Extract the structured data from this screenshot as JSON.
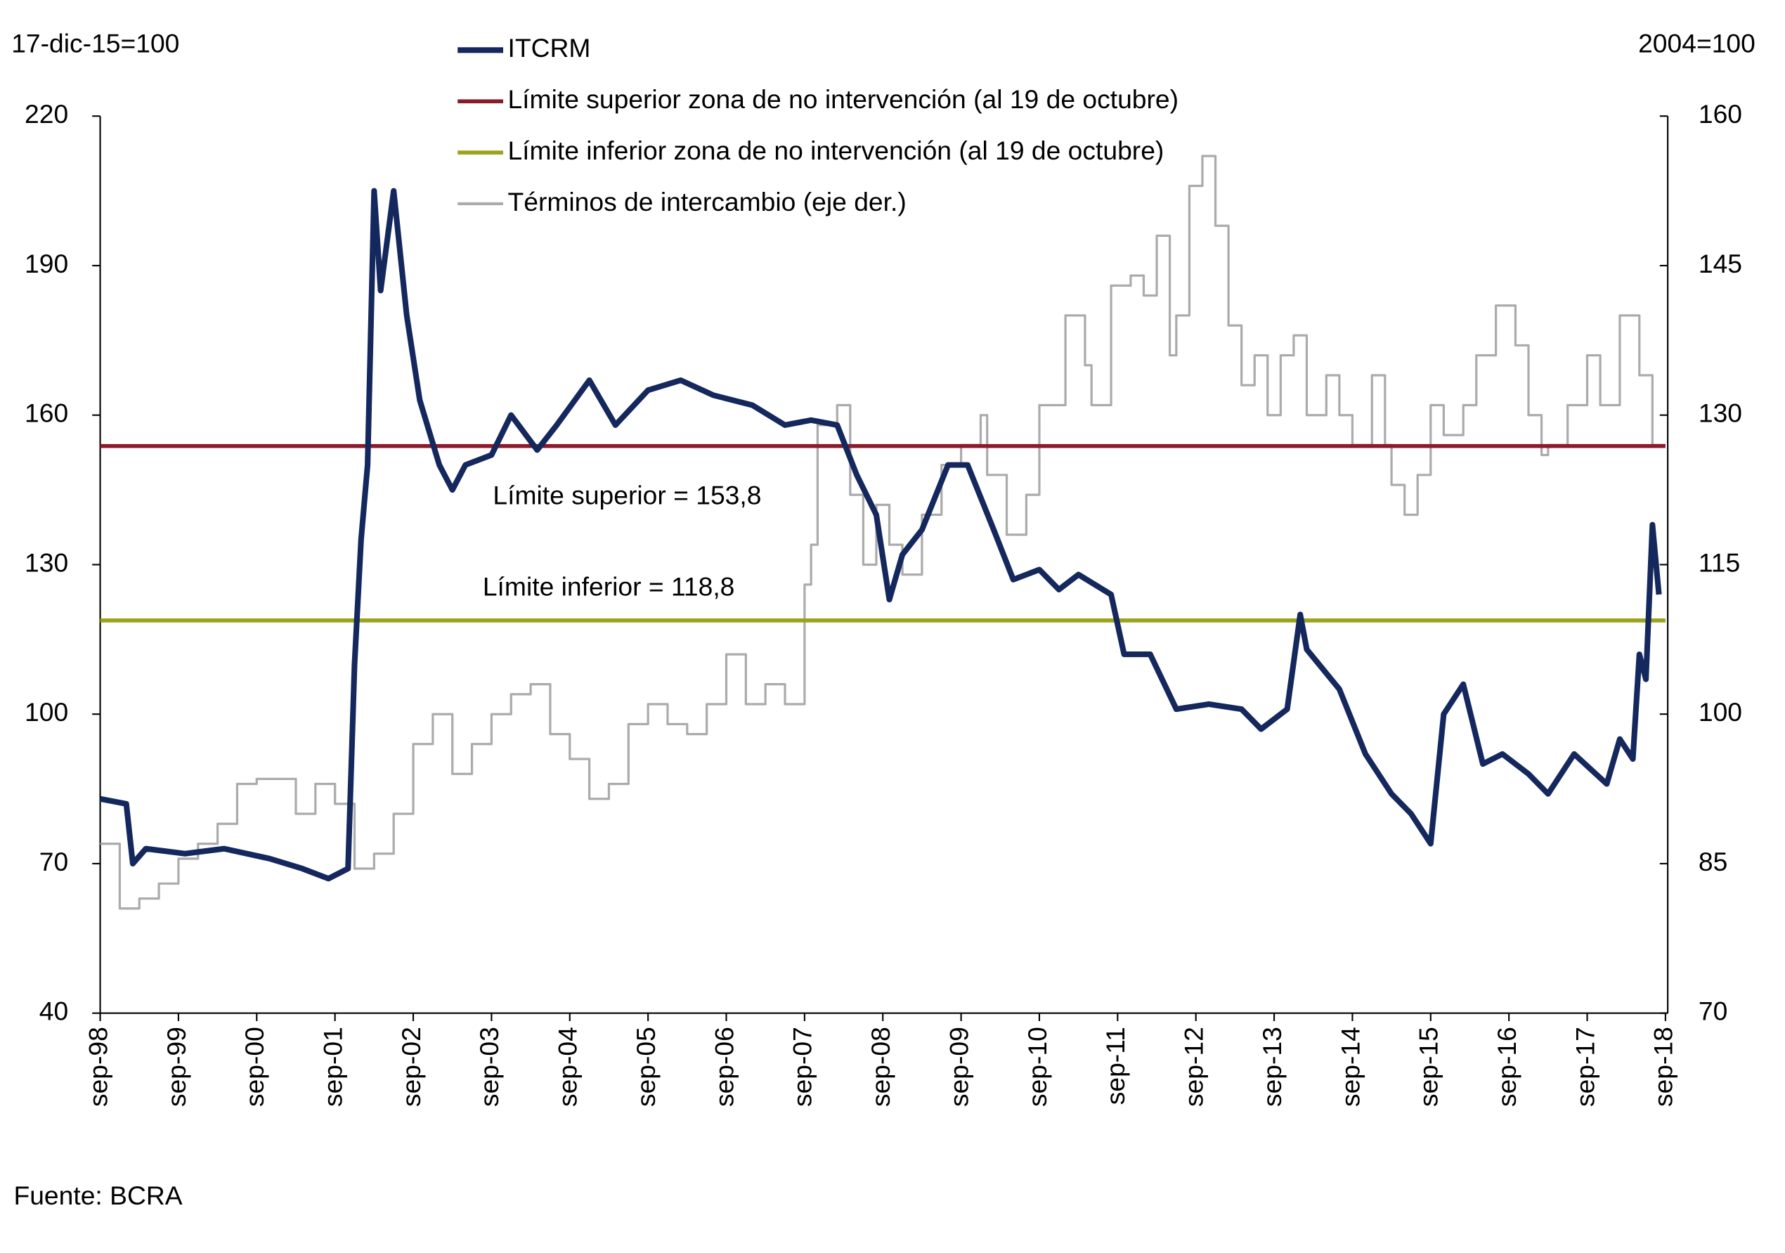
{
  "chart_data": {
    "type": "line",
    "y_label": "17-dic-15=100",
    "y2_label": "2004=100",
    "source": "Fuente: BCRA",
    "legend": "top",
    "xlim": [
      "1998-09",
      "2018-09"
    ],
    "xticks": [
      {
        "value": "1998-09",
        "label": "sep-98"
      },
      {
        "value": "1999-09",
        "label": "sep-99"
      },
      {
        "value": "2000-09",
        "label": "sep-00"
      },
      {
        "value": "2001-09",
        "label": "sep-01"
      },
      {
        "value": "2002-09",
        "label": "sep-02"
      },
      {
        "value": "2003-09",
        "label": "sep-03"
      },
      {
        "value": "2004-09",
        "label": "sep-04"
      },
      {
        "value": "2005-09",
        "label": "sep-05"
      },
      {
        "value": "2006-09",
        "label": "sep-06"
      },
      {
        "value": "2007-09",
        "label": "sep-07"
      },
      {
        "value": "2008-09",
        "label": "sep-08"
      },
      {
        "value": "2009-09",
        "label": "sep-09"
      },
      {
        "value": "2010-09",
        "label": "sep-10"
      },
      {
        "value": "2011-09",
        "label": "sep-11"
      },
      {
        "value": "2012-09",
        "label": "sep-12"
      },
      {
        "value": "2013-09",
        "label": "sep-13"
      },
      {
        "value": "2014-09",
        "label": "sep-14"
      },
      {
        "value": "2015-09",
        "label": "sep-15"
      },
      {
        "value": "2016-09",
        "label": "sep-16"
      },
      {
        "value": "2017-09",
        "label": "sep-17"
      },
      {
        "value": "2018-09",
        "label": "sep-18"
      }
    ],
    "ylim": [
      40,
      220
    ],
    "yticks": [
      40,
      70,
      100,
      130,
      160,
      190,
      220
    ],
    "y2lim": [
      70,
      160
    ],
    "y2ticks": [
      70,
      85,
      100,
      115,
      130,
      145,
      160
    ],
    "annotations": [
      {
        "text": "Límite superior = 153,8",
        "color": "#8b1a2b"
      },
      {
        "text": "Límite inferior  = 118,8",
        "color": "#8a8c10"
      }
    ],
    "series": [
      {
        "name": "ITCRM",
        "color": "#14285e",
        "width": 5,
        "x": [
          "1998-09",
          "1999-01",
          "1999-02",
          "1999-04",
          "1999-10",
          "2000-04",
          "2000-11",
          "2001-04",
          "2001-08",
          "2001-11",
          "2001-12",
          "2002-01",
          "2002-02",
          "2002-03",
          "2002-04",
          "2002-06",
          "2002-08",
          "2002-10",
          "2003-01",
          "2003-03",
          "2003-05",
          "2003-09",
          "2003-12",
          "2004-04",
          "2004-07",
          "2004-12",
          "2005-04",
          "2005-09",
          "2006-02",
          "2006-07",
          "2007-01",
          "2007-06",
          "2007-10",
          "2008-02",
          "2008-05",
          "2008-08",
          "2008-10",
          "2008-12",
          "2009-03",
          "2009-07",
          "2009-10",
          "2010-02",
          "2010-05",
          "2010-09",
          "2010-12",
          "2011-03",
          "2011-08",
          "2011-10",
          "2012-02",
          "2012-06",
          "2012-11",
          "2013-04",
          "2013-07",
          "2013-11",
          "2014-01",
          "2014-02",
          "2014-07",
          "2014-11",
          "2015-03",
          "2015-06",
          "2015-09",
          "2015-11",
          "2016-02",
          "2016-05",
          "2016-08",
          "2016-12",
          "2017-03",
          "2017-07",
          "2017-12",
          "2018-02",
          "2018-04",
          "2018-05",
          "2018-06",
          "2018-07",
          "2018-08"
        ],
        "values": [
          83,
          82,
          70,
          73,
          72,
          73,
          71,
          69,
          67,
          69,
          110,
          135,
          150,
          205,
          185,
          205,
          180,
          163,
          150,
          145,
          150,
          152,
          160,
          153,
          158,
          167,
          158,
          165,
          167,
          164,
          162,
          158,
          159,
          158,
          148,
          140,
          123,
          132,
          137,
          150,
          150,
          137,
          127,
          129,
          125,
          128,
          124,
          112,
          112,
          101,
          102,
          101,
          97,
          101,
          120,
          113,
          105,
          92,
          84,
          80,
          74,
          100,
          106,
          90,
          92,
          88,
          84,
          92,
          86,
          95,
          91,
          112,
          107,
          138,
          124
        ]
      },
      {
        "name": "Límite superior zona de no intervención (al 19 de octubre)",
        "color": "#8b1a2b",
        "width": 3.5,
        "x": [
          "1998-09",
          "2018-09"
        ],
        "values": [
          153.8,
          153.8
        ]
      },
      {
        "name": "Límite inferior zona de no intervención (al 19 de octubre)",
        "color": "#9aa31a",
        "width": 3.5,
        "x": [
          "1998-09",
          "2018-09"
        ],
        "values": [
          118.8,
          118.8
        ]
      },
      {
        "name": "Términos de intercambio (eje der.)",
        "color": "#ababab",
        "width": 2,
        "axis": "y2",
        "step": true,
        "x": [
          "1998-09",
          "1998-12",
          "1999-03",
          "1999-06",
          "1999-09",
          "1999-12",
          "2000-03",
          "2000-06",
          "2000-09",
          "2001-03",
          "2001-06",
          "2001-09",
          "2001-12",
          "2002-03",
          "2002-06",
          "2002-09",
          "2002-12",
          "2003-03",
          "2003-06",
          "2003-09",
          "2003-12",
          "2004-03",
          "2004-06",
          "2004-09",
          "2004-12",
          "2005-03",
          "2005-06",
          "2005-09",
          "2005-12",
          "2006-03",
          "2006-06",
          "2006-09",
          "2006-12",
          "2007-03",
          "2007-06",
          "2007-09",
          "2007-10",
          "2007-11",
          "2008-02",
          "2008-04",
          "2008-06",
          "2008-08",
          "2008-10",
          "2008-12",
          "2009-03",
          "2009-06",
          "2009-09",
          "2009-12",
          "2010-01",
          "2010-04",
          "2010-07",
          "2010-09",
          "2011-01",
          "2011-04",
          "2011-05",
          "2011-08",
          "2011-11",
          "2012-01",
          "2012-03",
          "2012-05",
          "2012-06",
          "2012-08",
          "2012-10",
          "2012-12",
          "2013-02",
          "2013-04",
          "2013-06",
          "2013-08",
          "2013-10",
          "2013-12",
          "2014-02",
          "2014-05",
          "2014-07",
          "2014-09",
          "2014-12",
          "2015-02",
          "2015-03",
          "2015-05",
          "2015-07",
          "2015-09",
          "2015-11",
          "2016-02",
          "2016-04",
          "2016-07",
          "2016-10",
          "2016-12",
          "2017-02",
          "2017-03",
          "2017-06",
          "2017-09",
          "2017-11",
          "2018-02",
          "2018-05",
          "2018-07",
          "2018-09"
        ],
        "values": [
          87,
          80.5,
          81.5,
          83,
          85.5,
          87,
          89,
          93,
          93.5,
          90,
          93,
          91,
          84.5,
          86,
          90,
          97,
          100,
          94,
          97,
          100,
          102,
          103,
          98,
          95.5,
          91.5,
          93,
          99,
          101,
          99,
          98,
          101,
          106,
          101,
          103,
          101,
          113,
          117,
          129,
          131,
          122,
          115,
          121,
          117,
          114,
          120,
          125,
          127,
          130,
          124,
          118,
          122,
          131,
          140,
          135,
          131,
          143,
          144,
          142,
          148,
          136,
          140,
          153,
          156,
          149,
          139,
          133,
          136,
          130,
          136,
          138,
          130,
          134,
          130,
          127,
          134,
          127,
          123,
          120,
          124,
          131,
          128,
          131,
          136,
          141,
          137,
          130,
          126,
          127,
          131,
          136,
          131,
          140,
          134,
          127,
          127
        ]
      }
    ]
  }
}
